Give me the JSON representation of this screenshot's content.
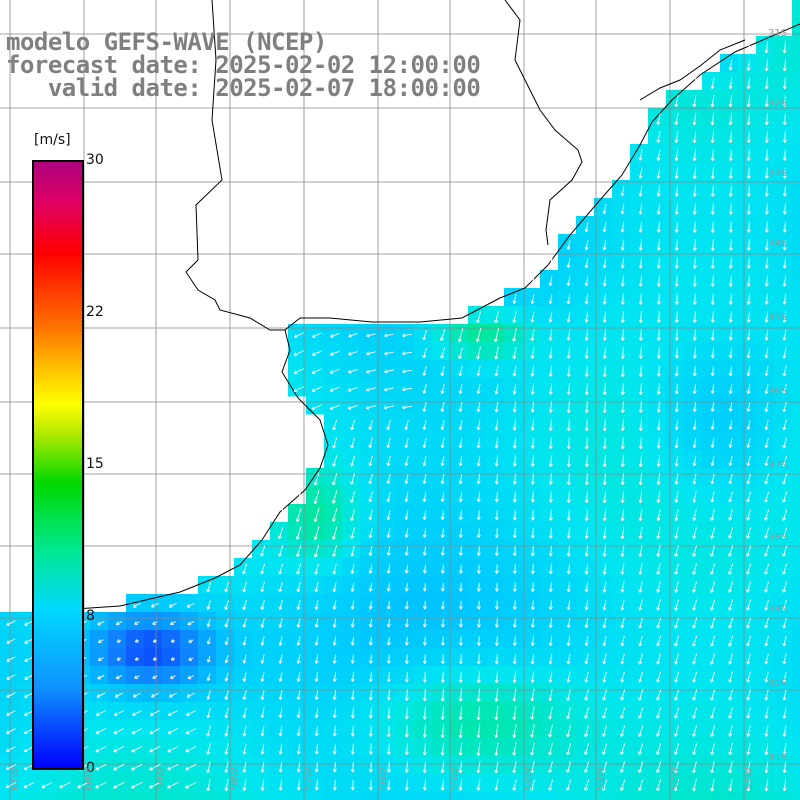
{
  "header": {
    "line1": "modelo GEFS-WAVE (NCEP)",
    "line2": "forecast date: 2025-02-02 12:00:00",
    "line3": "   valid date: 2025-02-07 18:00:00"
  },
  "colorbar": {
    "unit": "[m/s]",
    "ticks": [
      "30",
      "22",
      "15",
      "8",
      "0"
    ],
    "colors": [
      "#0000ff",
      "#1090ff",
      "#00d8ff",
      "#00e890",
      "#00d800",
      "#ffff00",
      "#ff7000",
      "#ff0000",
      "#b00080"
    ]
  },
  "axes": {
    "lon_labels": [
      "61W",
      "60W",
      "59W",
      "58W",
      "57W",
      "56W",
      "55W",
      "54W",
      "53W",
      "52W",
      "51W"
    ],
    "lat_labels": [
      "31S",
      "32S",
      "33S",
      "34S",
      "35S",
      "36S",
      "37S",
      "38S",
      "39S",
      "40S",
      "41S"
    ]
  },
  "map": {
    "region": "Río de la Plata / Uruguay coast",
    "field": "wind speed with direction arrows",
    "land_color": "#ffffff",
    "coast_color": "#000000",
    "grid_color": "#888888",
    "arrow_color": "#ffffff",
    "prevailing_direction": "from north / northeast"
  }
}
